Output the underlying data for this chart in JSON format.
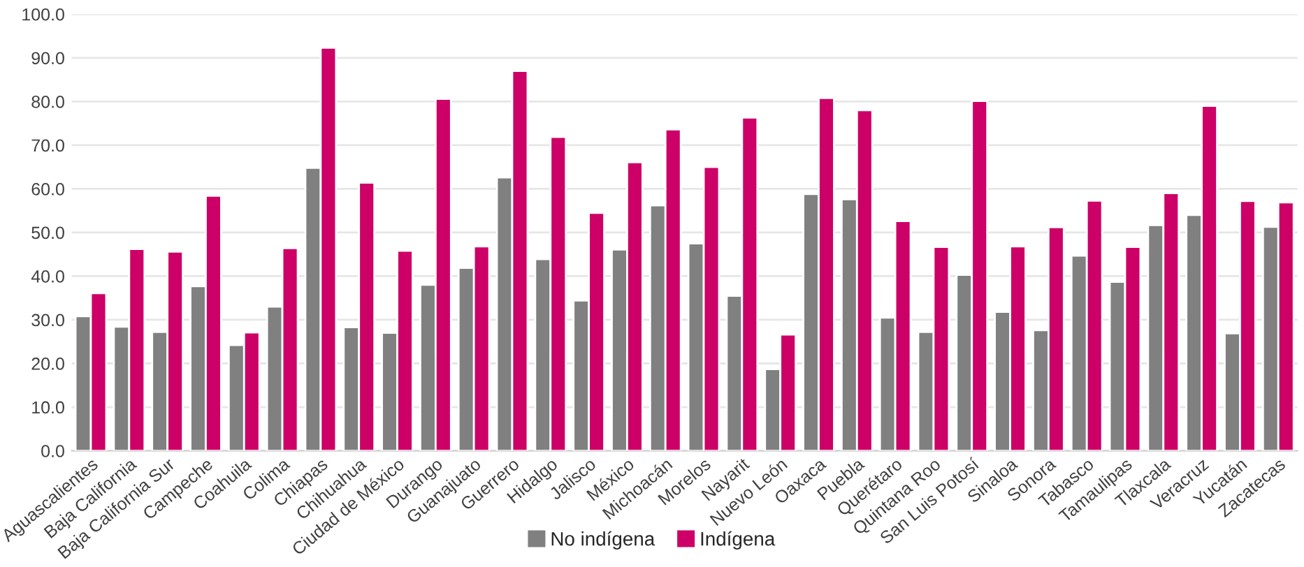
{
  "chart_data": {
    "type": "bar",
    "categories": [
      "Aguascalientes",
      "Baja California",
      "Baja California Sur",
      "Campeche",
      "Coahuila",
      "Colima",
      "Chiapas",
      "Chihuahua",
      "Ciudad de México",
      "Durango",
      "Guanajuato",
      "Guerrero",
      "Hidalgo",
      "Jalisco",
      "México",
      "Michoacán",
      "Morelos",
      "Nayarit",
      "Nuevo León",
      "Oaxaca",
      "Puebla",
      "Querétaro",
      "Quintana Roo",
      "San Luis Potosí",
      "Sinaloa",
      "Sonora",
      "Tabasco",
      "Tamaulipas",
      "Tlaxcala",
      "Veracruz",
      "Yucatán",
      "Zacatecas"
    ],
    "series": [
      {
        "name": "No indígena",
        "color": "#808080",
        "values": [
          30.8,
          28.4,
          27.2,
          37.7,
          24.2,
          33.0,
          64.8,
          28.3,
          27.0,
          38.0,
          41.9,
          62.6,
          43.9,
          34.4,
          46.1,
          56.2,
          47.5,
          35.5,
          18.7,
          58.8,
          57.6,
          30.5,
          27.2,
          40.3,
          31.8,
          27.6,
          44.7,
          38.7,
          51.7,
          54.0,
          26.9,
          51.3
        ]
      },
      {
        "name": "Indígena",
        "color": "#cc0066",
        "values": [
          36.1,
          46.2,
          45.6,
          58.4,
          27.1,
          46.4,
          92.3,
          61.4,
          45.8,
          80.6,
          46.8,
          87.0,
          71.9,
          54.5,
          66.1,
          73.6,
          65.0,
          76.3,
          26.6,
          80.8,
          78.0,
          52.6,
          46.7,
          80.1,
          46.8,
          51.2,
          57.3,
          46.7,
          59.0,
          79.0,
          57.2,
          56.9
        ]
      }
    ],
    "ylim": [
      0,
      100
    ],
    "yticks": [
      {
        "value": 0,
        "label": "0.0"
      },
      {
        "value": 10,
        "label": "10.0"
      },
      {
        "value": 20,
        "label": "20.0"
      },
      {
        "value": 30,
        "label": "30.0"
      },
      {
        "value": 40,
        "label": "40.0"
      },
      {
        "value": 50,
        "label": "50.0"
      },
      {
        "value": 60,
        "label": "60.0"
      },
      {
        "value": 70,
        "label": "70.0"
      },
      {
        "value": 80,
        "label": "80.0"
      },
      {
        "value": 90,
        "label": "90.0"
      },
      {
        "value": 100,
        "label": "100.0"
      }
    ],
    "grid": "y",
    "legend": "bottom"
  }
}
